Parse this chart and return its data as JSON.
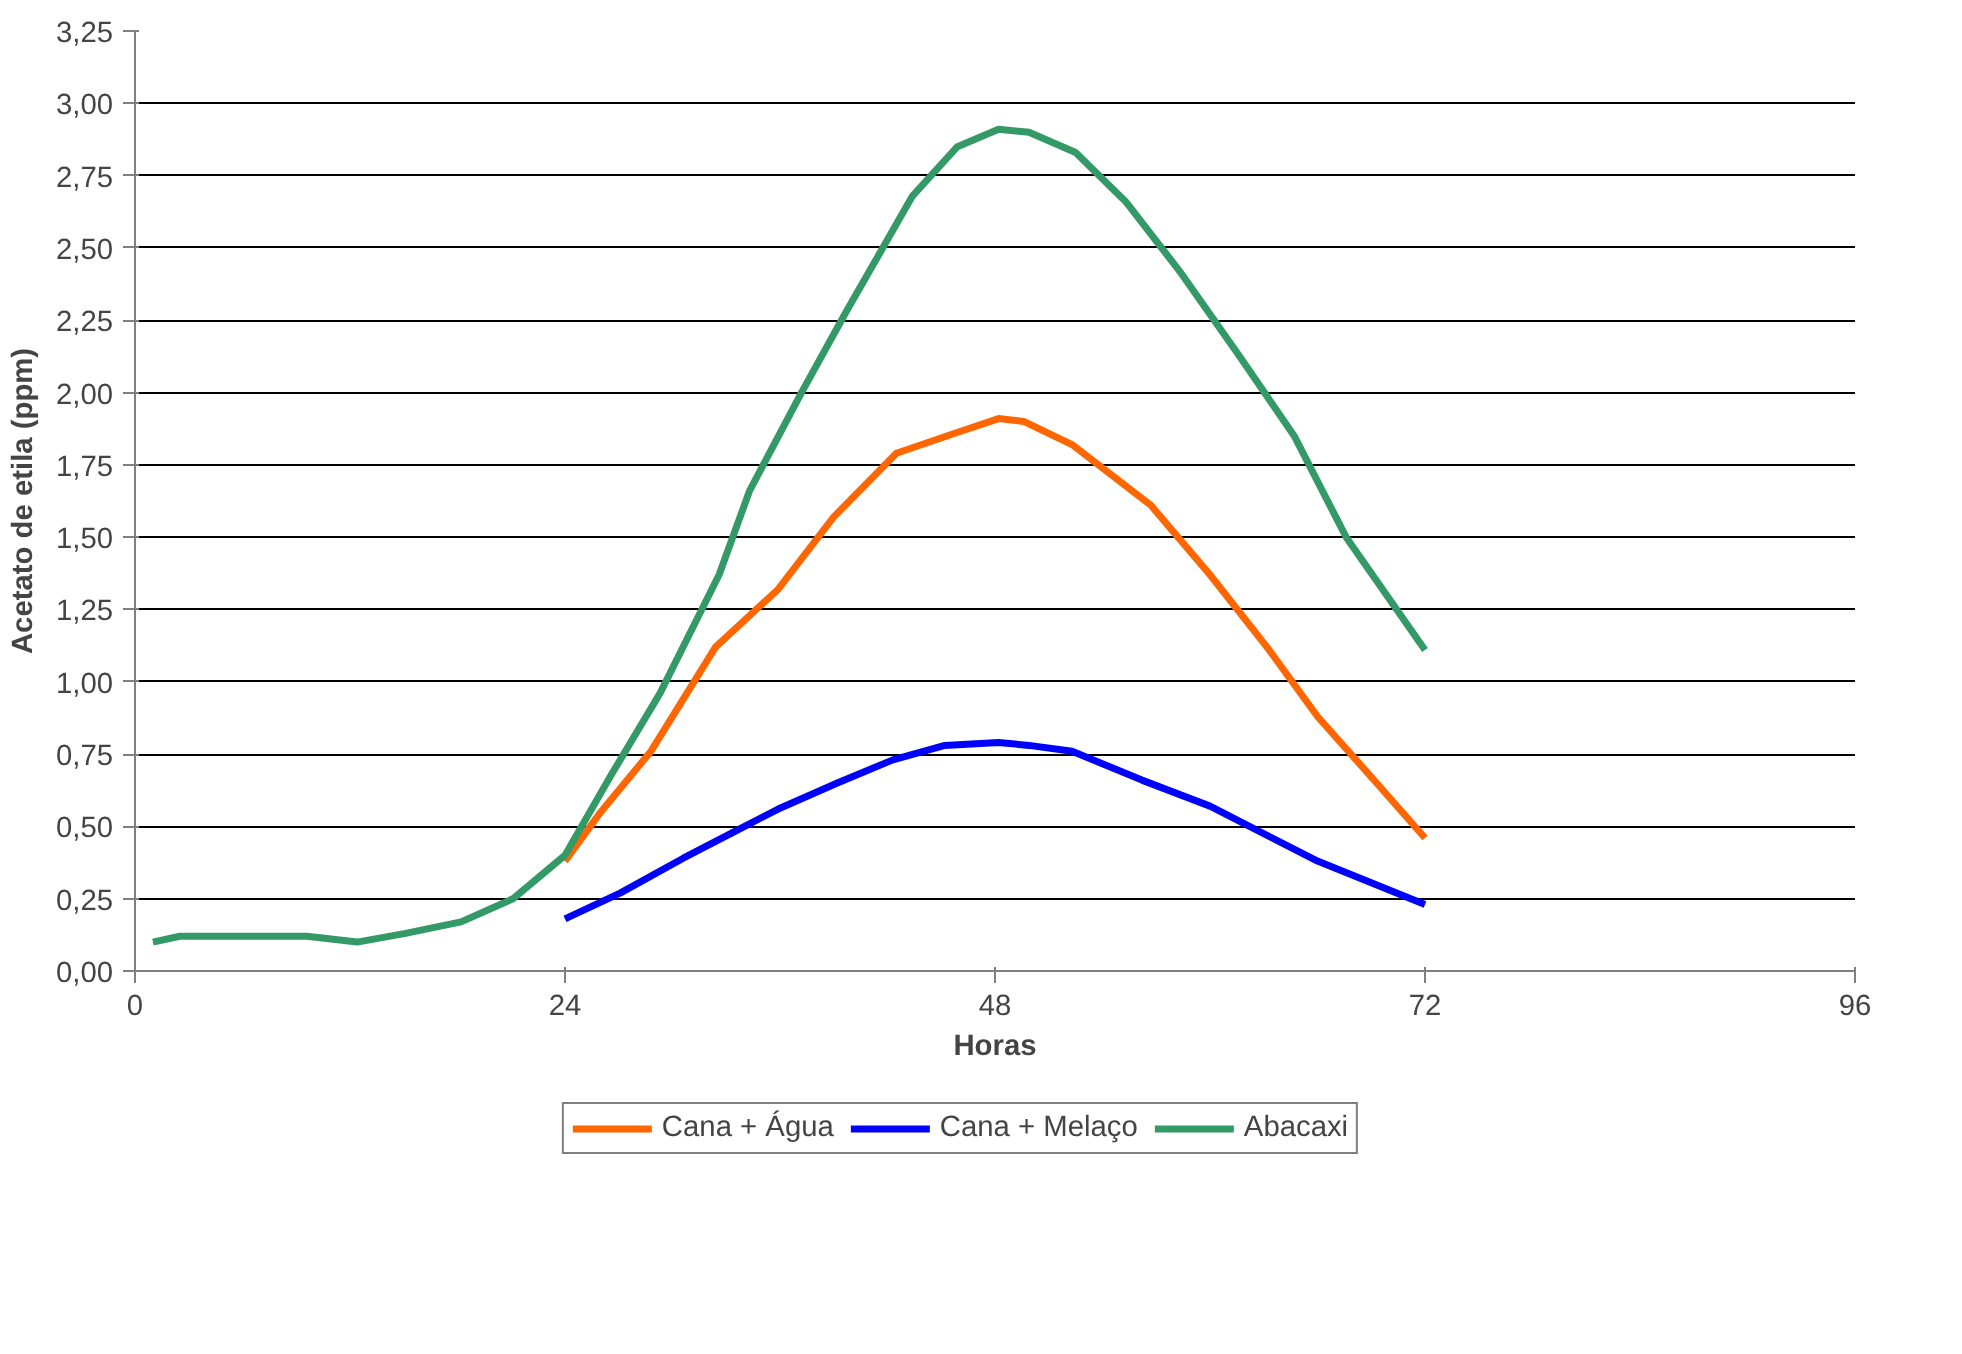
{
  "chart_data": {
    "type": "line",
    "xlabel": "Horas",
    "ylabel": "Acetato de etila (ppm)",
    "xlim": [
      0,
      96
    ],
    "xticks": [
      0,
      24,
      48,
      72,
      96
    ],
    "ylim": [
      0,
      3.25
    ],
    "yticks": [
      {
        "value": 0,
        "label": "0,00"
      },
      {
        "value": 0.25,
        "label": "0,25"
      },
      {
        "value": 0.5,
        "label": "0,50"
      },
      {
        "value": 0.75,
        "label": "0,75"
      },
      {
        "value": 1,
        "label": "1,00"
      },
      {
        "value": 1.25,
        "label": "1,25"
      },
      {
        "value": 1.5,
        "label": "1,50"
      },
      {
        "value": 1.75,
        "label": "1,75"
      },
      {
        "value": 2,
        "label": "2,00"
      },
      {
        "value": 2.25,
        "label": "2,25"
      },
      {
        "value": 2.5,
        "label": "2,50"
      },
      {
        "value": 2.75,
        "label": "2,75"
      },
      {
        "value": 3,
        "label": "3,00"
      },
      {
        "value": 3.25,
        "label": "3,25"
      }
    ],
    "grid": "y",
    "legend": "bottom",
    "line_style": "solid",
    "series": [
      {
        "name": "Cana + Água",
        "color": "#ff6600",
        "x": [
          24,
          26,
          28.8,
          32.4,
          35.9,
          39,
          42.5,
          45.8,
          48.2,
          49.6,
          52.3,
          56.7,
          60,
          63.3,
          66,
          69.3,
          72
        ],
        "values": [
          0.38,
          0.55,
          0.76,
          1.12,
          1.32,
          1.57,
          1.79,
          1.86,
          1.91,
          1.9,
          1.82,
          1.61,
          1.37,
          1.11,
          0.88,
          0.65,
          0.46
        ]
      },
      {
        "name": "Cana + Melaço",
        "color": "#0000ff",
        "x": [
          24,
          27.1,
          30.6,
          33.7,
          35.9,
          39.2,
          42.3,
          45.2,
          48.2,
          49.9,
          52.3,
          56.2,
          60,
          66,
          72
        ],
        "values": [
          0.18,
          0.27,
          0.39,
          0.49,
          0.56,
          0.65,
          0.73,
          0.78,
          0.79,
          0.78,
          0.76,
          0.66,
          0.57,
          0.38,
          0.23
        ]
      },
      {
        "name": "Abacaxi",
        "color": "#339966",
        "x": [
          1,
          2.5,
          9.6,
          12.4,
          15.1,
          18.2,
          21.1,
          24,
          26.6,
          29.3,
          32.6,
          34.3,
          37.2,
          39.7,
          43.4,
          45.9,
          48.2,
          49.9,
          52.5,
          55.3,
          58.3,
          61.6,
          64.7,
          67.6,
          72
        ],
        "values": [
          0.1,
          0.12,
          0.12,
          0.1,
          0.13,
          0.17,
          0.25,
          0.4,
          0.68,
          0.96,
          1.37,
          1.66,
          2.0,
          2.28,
          2.68,
          2.85,
          2.91,
          2.9,
          2.83,
          2.66,
          2.42,
          2.13,
          1.85,
          1.5,
          1.11
        ]
      }
    ]
  }
}
